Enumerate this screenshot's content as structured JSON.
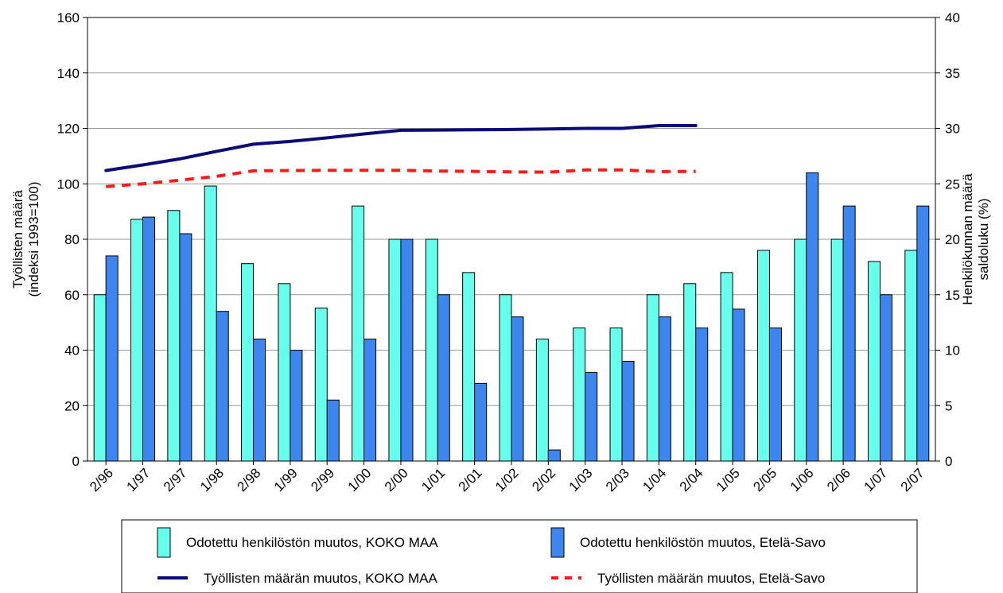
{
  "chart_data": {
    "type": "bar",
    "categories": [
      "2/96",
      "1/97",
      "2/97",
      "1/98",
      "2/98",
      "1/99",
      "2/99",
      "1/00",
      "2/00",
      "1/01",
      "2/01",
      "1/02",
      "2/02",
      "1/03",
      "2/03",
      "1/04",
      "2/04",
      "1/05",
      "2/05",
      "1/06",
      "2/06",
      "1/07",
      "2/07"
    ],
    "ylabel": "Työllisten määrä\n(indeksi 1993=100)",
    "y2label": "Henkilökunnan määrä\nsaldoluku (%)",
    "ylim": [
      0,
      160
    ],
    "y2lim": [
      0,
      40
    ],
    "yticks": [
      "0",
      "20",
      "40",
      "60",
      "80",
      "100",
      "120",
      "140",
      "160"
    ],
    "y2ticks": [
      "0",
      "5",
      "10",
      "15",
      "20",
      "25",
      "30",
      "35",
      "40"
    ],
    "grid": true,
    "legend_position": "bottom",
    "bar_series": [
      {
        "name": "Odotettu henkilöstön muutos, KOKO MAA",
        "axis": "right",
        "color": "#66ffee",
        "values": [
          15,
          21.8,
          22.6,
          24.8,
          17.8,
          16,
          13.8,
          23,
          20,
          20,
          17,
          15,
          11,
          12,
          12,
          15,
          16,
          17,
          19,
          20,
          20,
          18,
          19
        ]
      },
      {
        "name": "Odotettu henkilöstön muutos, Etelä-Savo",
        "axis": "right",
        "color": "#3d86f0",
        "values": [
          18.5,
          22,
          20.5,
          13.5,
          11,
          10,
          5.5,
          11,
          20,
          15,
          7,
          13,
          1,
          8,
          9,
          13,
          12,
          13.7,
          12,
          26,
          23,
          15,
          23
        ]
      }
    ],
    "line_series": [
      {
        "name": "Työllisten määrän muutos, KOKO MAA",
        "axis": "left",
        "color": "#0a0a78",
        "style": "solid",
        "values": [
          104.8,
          106.8,
          109,
          111.7,
          114.3,
          115.3,
          116.6,
          118,
          119.3,
          119.4,
          119.5,
          119.6,
          119.8,
          120,
          120,
          121,
          121,
          null,
          null,
          null,
          null,
          null,
          null
        ]
      },
      {
        "name": "Työllisten määrän muutos, Etelä-Savo",
        "axis": "left",
        "color": "#ff1a1a",
        "style": "dashed",
        "values": [
          99,
          100,
          101.3,
          102.7,
          104.7,
          104.8,
          104.9,
          104.9,
          104.9,
          104.6,
          104.5,
          104.3,
          104.2,
          105,
          105,
          104.4,
          104.5,
          null,
          null,
          null,
          null,
          null,
          null
        ]
      }
    ]
  }
}
